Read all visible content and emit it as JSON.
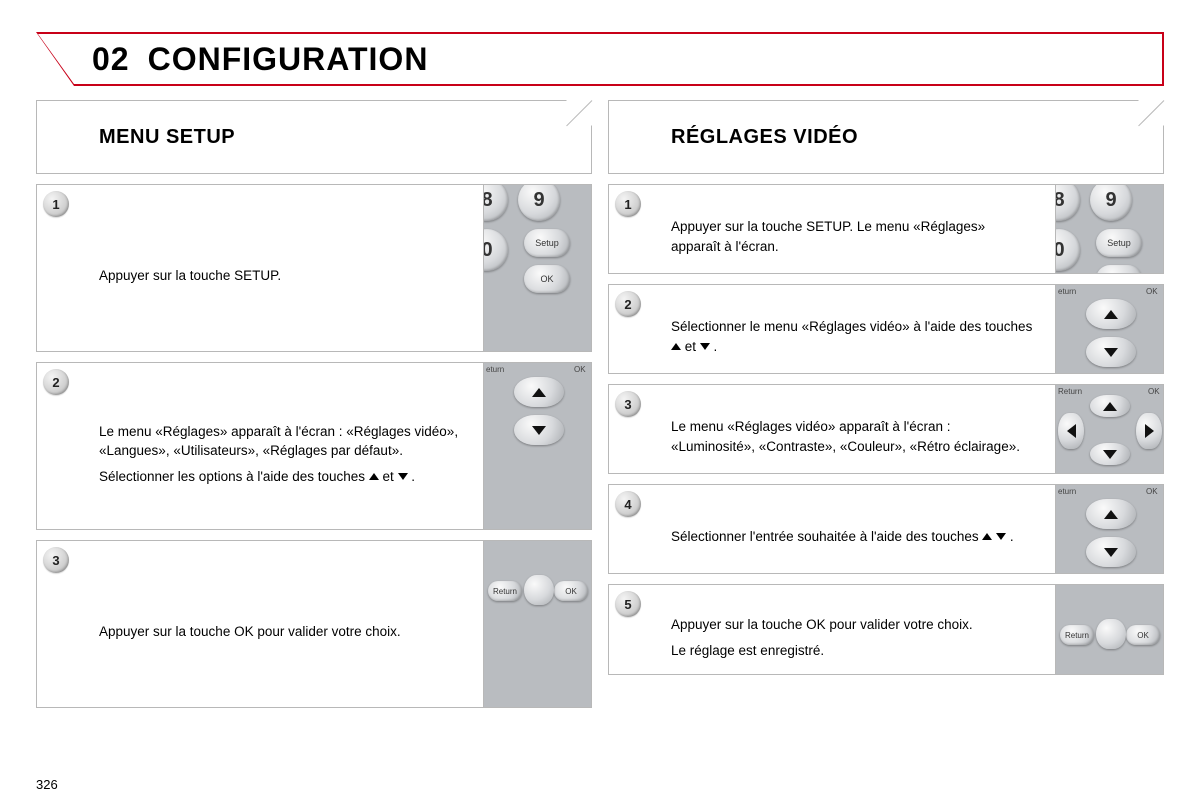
{
  "page": {
    "chapter_number": "02",
    "chapter_title": "CONFIGURATION",
    "page_number": "326"
  },
  "colors": {
    "accent": "#c80018",
    "rule": "#b8b8b8",
    "remote_bg": "#b9bcc0"
  },
  "left_column": {
    "heading": "MENU SETUP",
    "steps": [
      {
        "num": "1",
        "lines": [
          "Appuyer sur la touche SETUP."
        ],
        "thumb": "setup-keys"
      },
      {
        "num": "2",
        "lines": [
          "Le menu «Réglages» apparaît à l'écran : «Réglages vidéo», «Langues», «Utilisateurs», «Réglages par défaut».",
          "Sélectionner les options à l'aide des touches ▲ et ▼ ."
        ],
        "thumb": "up-down-pad"
      },
      {
        "num": "3",
        "lines": [
          "Appuyer sur la touche OK pour valider votre choix."
        ],
        "thumb": "return-ok"
      }
    ]
  },
  "right_column": {
    "heading": "RÉGLAGES VIDÉO",
    "steps": [
      {
        "num": "1",
        "lines": [
          "Appuyer sur la touche SETUP. Le menu «Réglages» apparaît à l'écran."
        ],
        "thumb": "setup-keys"
      },
      {
        "num": "2",
        "lines": [
          "Sélectionner le menu «Réglages vidéo» à l'aide des touches ▲ et ▼ ."
        ],
        "thumb": "up-down-pad"
      },
      {
        "num": "3",
        "lines": [
          "Le menu «Réglages vidéo» apparaît à l'écran : «Luminosité», «Contraste», «Couleur», «Rétro éclairage»."
        ],
        "thumb": "full-pad"
      },
      {
        "num": "4",
        "lines": [
          "Sélectionner l'entrée souhaitée à l'aide des touches ▲ ▼ ."
        ],
        "thumb": "up-down-pad"
      },
      {
        "num": "5",
        "lines": [
          "Appuyer sur la touche OK pour valider votre choix.",
          "Le réglage est enregistré."
        ],
        "thumb": "return-ok"
      }
    ]
  }
}
